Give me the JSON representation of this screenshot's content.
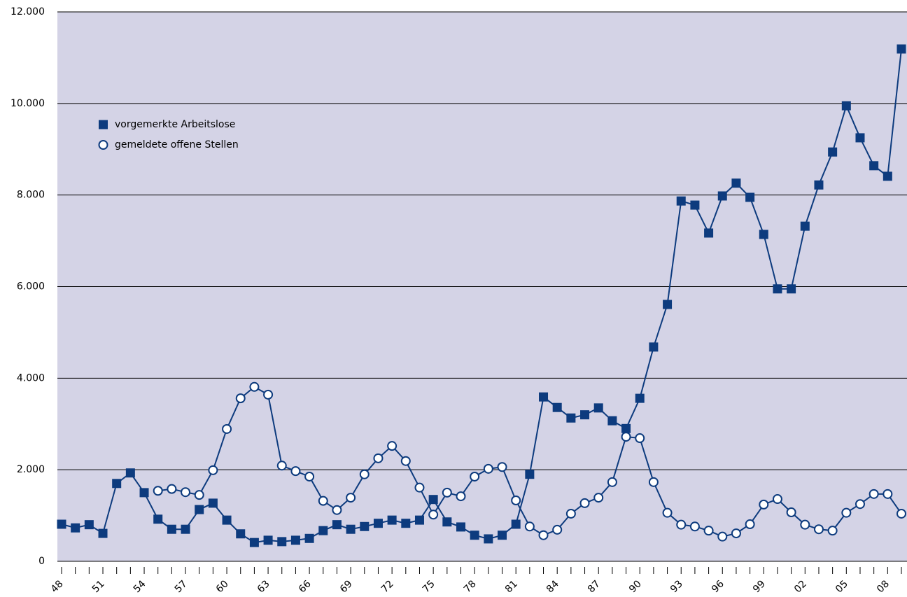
{
  "chart_data": {
    "type": "line",
    "categories": [
      "48",
      null,
      null,
      "51",
      null,
      null,
      "54",
      null,
      null,
      "57",
      null,
      null,
      "60",
      null,
      null,
      "63",
      null,
      null,
      "66",
      null,
      null,
      "69",
      null,
      null,
      "72",
      null,
      null,
      "75",
      null,
      null,
      "78",
      null,
      null,
      "81",
      null,
      null,
      "84",
      null,
      null,
      "87",
      null,
      null,
      "90",
      null,
      null,
      "93",
      null,
      null,
      "96",
      null,
      null,
      "99",
      null,
      null,
      "02",
      null,
      null,
      "05",
      null,
      null,
      "08",
      null
    ],
    "series": [
      {
        "name": "vorgemerkte Arbeitslose",
        "color": "#0d3b7e",
        "marker": "square",
        "values": [
          810,
          730,
          800,
          610,
          1700,
          1930,
          1500,
          920,
          700,
          700,
          1130,
          1270,
          900,
          600,
          410,
          460,
          430,
          460,
          500,
          670,
          800,
          700,
          760,
          830,
          900,
          830,
          900,
          1350,
          860,
          750,
          570,
          490,
          570,
          810,
          1900,
          3590,
          3360,
          3130,
          3200,
          3350,
          3070,
          2900,
          3560,
          4680,
          5610,
          7870,
          7780,
          7170,
          7980,
          8260,
          7950,
          7140,
          5950,
          5950,
          7320,
          8220,
          8940,
          9950,
          9250,
          8640,
          8410,
          11190
        ]
      },
      {
        "name": "gemeldete offene Stellen",
        "color": "#0d3b7e",
        "marker": "circle",
        "values": [
          null,
          null,
          null,
          null,
          null,
          null,
          null,
          1540,
          1580,
          1510,
          1450,
          1990,
          2890,
          3560,
          3810,
          3640,
          2090,
          1970,
          1850,
          1320,
          1120,
          1390,
          1900,
          2250,
          2520,
          2190,
          1610,
          1020,
          1500,
          1420,
          1850,
          2020,
          2060,
          1330,
          760,
          570,
          690,
          1040,
          1270,
          1390,
          1730,
          2720,
          2690,
          1730,
          1060,
          800,
          760,
          670,
          540,
          610,
          810,
          1240,
          1360,
          1070,
          800,
          700,
          670,
          1060,
          1250,
          1470,
          1470,
          1040
        ]
      }
    ],
    "ylim": [
      0,
      12000
    ],
    "yticks": [
      {
        "value": 0,
        "label": "0"
      },
      {
        "value": 2000,
        "label": "2.000"
      },
      {
        "value": 4000,
        "label": "4.000"
      },
      {
        "value": 6000,
        "label": "6.000"
      },
      {
        "value": 8000,
        "label": "8.000"
      },
      {
        "value": 10000,
        "label": "10.000"
      },
      {
        "value": 12000,
        "label": "12.000"
      }
    ],
    "grid": true,
    "legend": "upper left"
  }
}
